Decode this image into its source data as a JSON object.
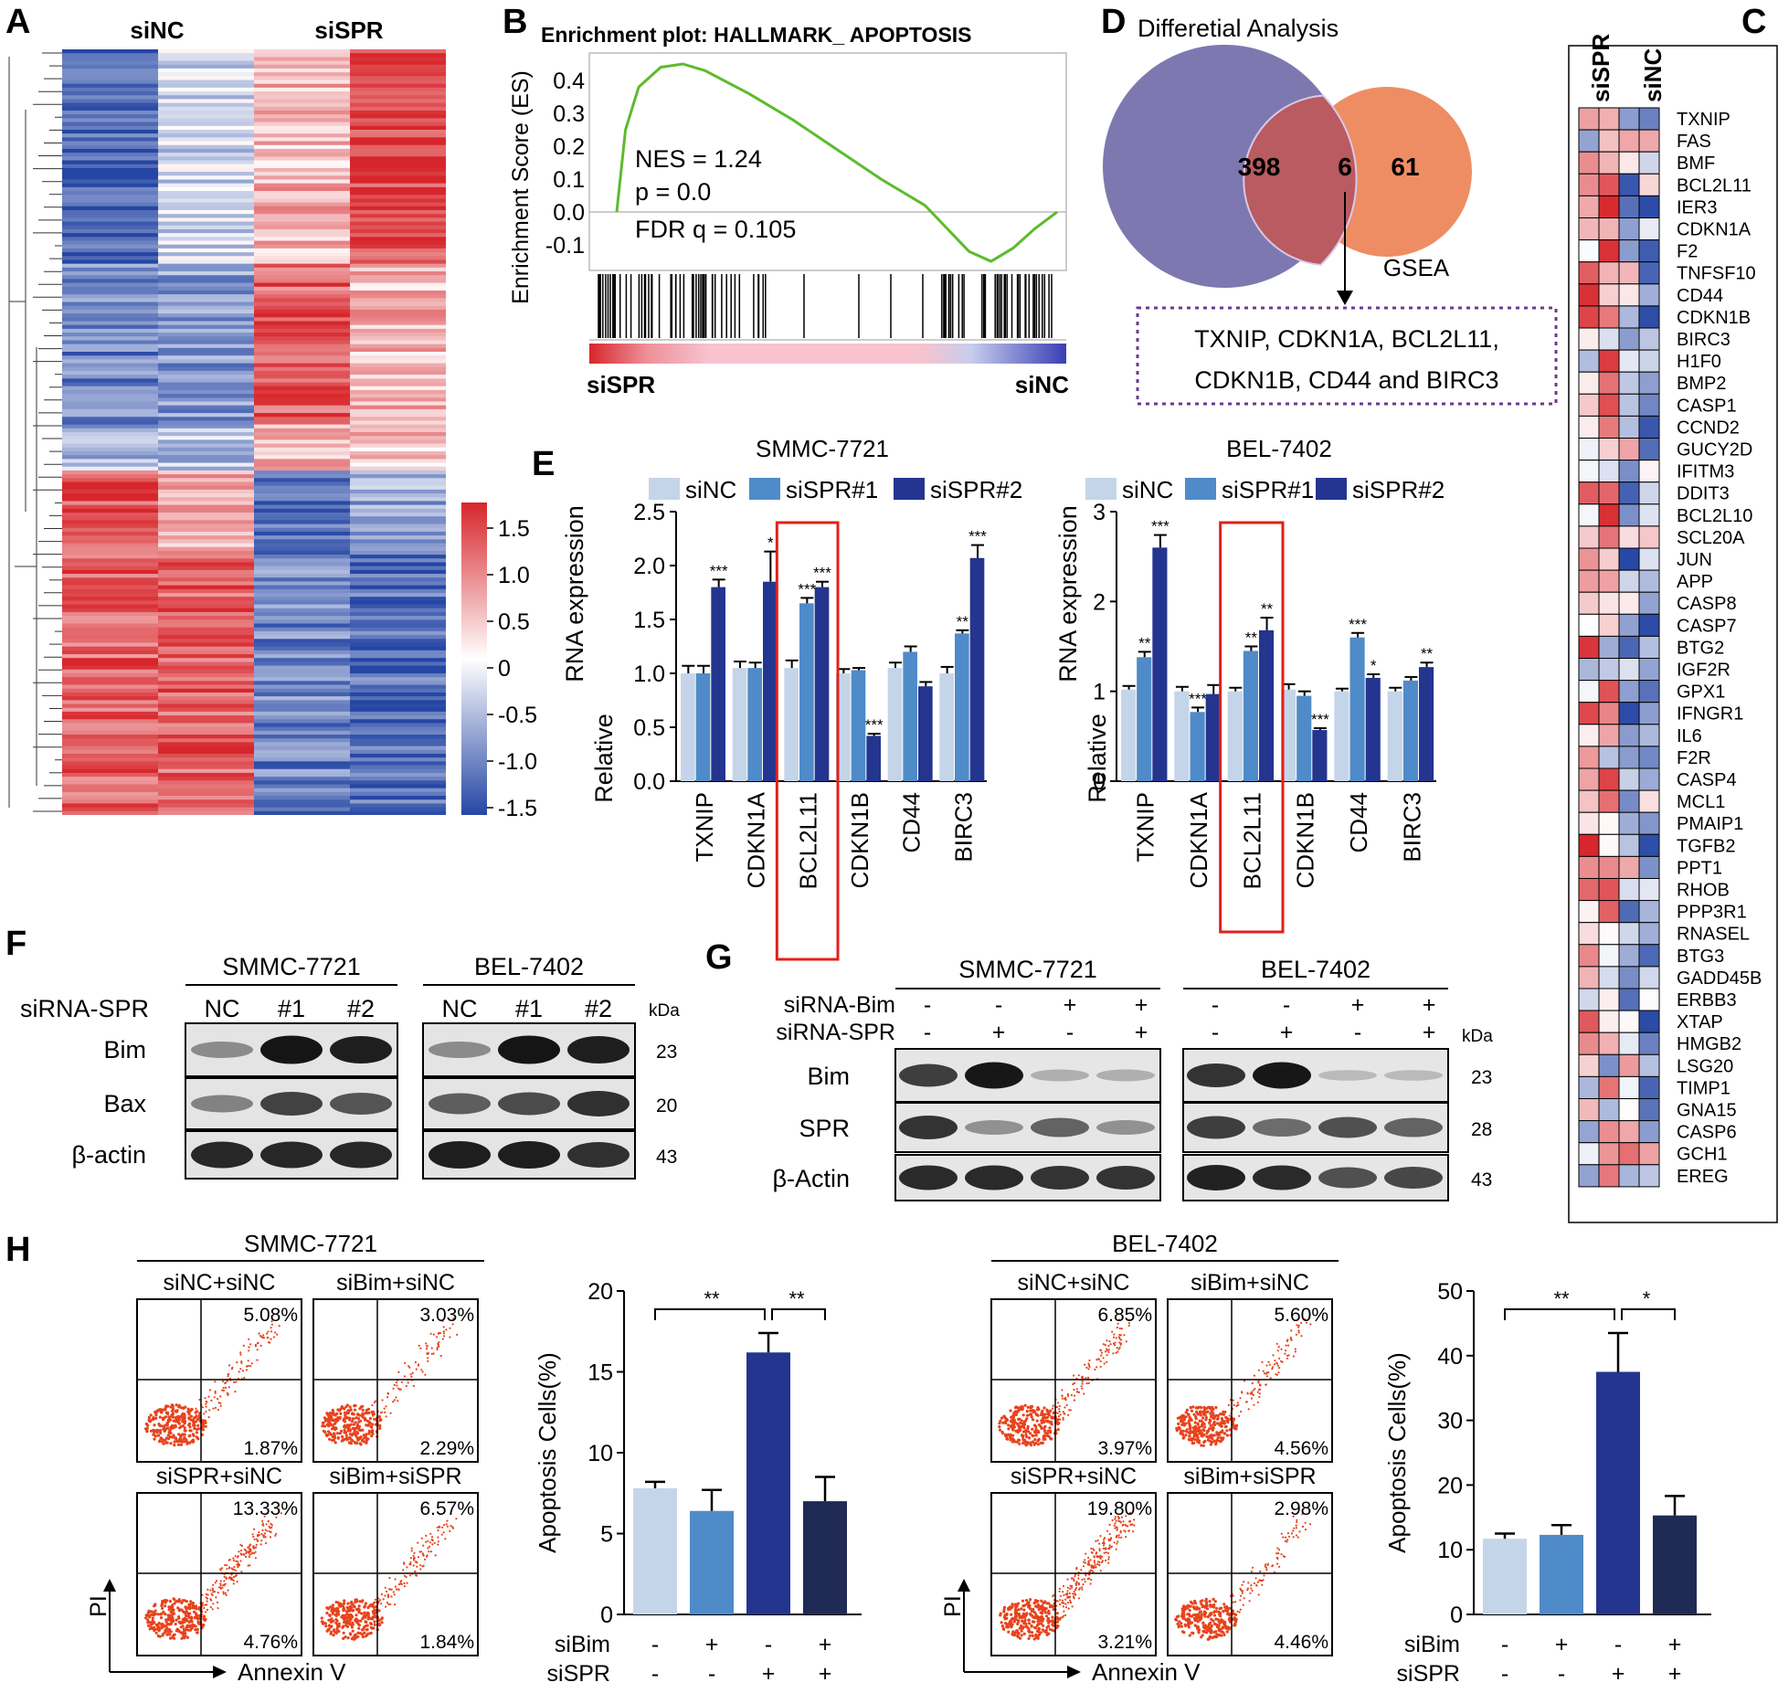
{
  "panel_letters": {
    "A": "A",
    "B": "B",
    "C": "C",
    "D": "D",
    "E": "E",
    "F": "F",
    "G": "G",
    "H": "H"
  },
  "colors": {
    "heat_red": "#d7262b",
    "heat_white": "#ffffff",
    "heat_blue": "#2546a4",
    "gsea_line": "#5dbb2d",
    "venn_big": "#7d78b0",
    "venn_small": "#ee8d64",
    "venn_overlap": "#b95b60",
    "dotted_box": "#6b3a8e",
    "highlight_box": "#e0211b",
    "bar_light": "#c5d5e9",
    "bar_mid": "#4f8bc8",
    "bar_dark": "#24358f",
    "bar_navy": "#1f2a55",
    "dots": "#e8431d"
  },
  "panel_a": {
    "col_labels": [
      "siNC",
      "siSPR"
    ],
    "colorbar_ticks": [
      "1.5",
      "1.0",
      "0.5",
      "0",
      "-0.5",
      "-1.0",
      "-1.5"
    ]
  },
  "panel_b": {
    "title": "Enrichment plot: HALLMARK_ APOPTOSIS",
    "ylabel": "Enrichment Score (ES)",
    "yticks": [
      "0.4",
      "0.3",
      "0.2",
      "0.1",
      "0.0",
      "-0.1"
    ],
    "stats": [
      "NES = 1.24",
      "p = 0.0",
      "FDR q = 0.105"
    ],
    "left_label": "siSPR",
    "right_label": "siNC"
  },
  "panel_c": {
    "col_labels": [
      "siSPR",
      "siNC"
    ],
    "genes": [
      "TXNIP",
      "FAS",
      "BMF",
      "BCL2L11",
      "IER3",
      "CDKN1A",
      "F2",
      "TNFSF10",
      "CD44",
      "CDKN1B",
      "BIRC3",
      "H1F0",
      "BMP2",
      "CASP1",
      "CCND2",
      "GUCY2D",
      "IFITM3",
      "DDIT3",
      "BCL2L10",
      "SCL20A",
      "JUN",
      "APP",
      "CASP8",
      "CASP7",
      "BTG2",
      "IGF2R",
      "GPX1",
      "IFNGR1",
      "IL6",
      "F2R",
      "CASP4",
      "MCL1",
      "PMAIP1",
      "TGFB2",
      "PPT1",
      "RHOB",
      "PPP3R1",
      "RNASEL",
      "BTG3",
      "GADD45B",
      "ERBB3",
      "XTAP",
      "HMGB2",
      "LSG20",
      "TIMP1",
      "GNA15",
      "CASP6",
      "GCH1",
      "EREG"
    ]
  },
  "panel_d": {
    "title": "Differetial Analysis",
    "left_count": "398",
    "overlap_count": "6",
    "right_count": "61",
    "gsea_label": "GSEA",
    "genes_line1": "TXNIP, CDKN1A, BCL2L11,",
    "genes_line2": "CDKN1B, CD44 and BIRC3"
  },
  "panel_e": {
    "ylabel_top": "RNA expression",
    "ylabel_bottom": "Relative",
    "legend": [
      "siNC",
      "siSPR#1",
      "siSPR#2"
    ],
    "charts": [
      {
        "title": "SMMC-7721",
        "yticks": [
          "2.5",
          "2.0",
          "1.5",
          "1.0",
          "0.5",
          "0.0"
        ],
        "genes": [
          "TXNIP",
          "CDKN1A",
          "BCL2L11",
          "CDKN1B",
          "CD44",
          "BIRC3"
        ],
        "sig": [
          [
            "",
            "",
            "***"
          ],
          [
            "",
            "",
            "*"
          ],
          [
            "",
            "***",
            "***"
          ],
          [
            "",
            "",
            "***"
          ],
          [
            "",
            "",
            ""
          ],
          [
            "",
            "**",
            "***"
          ]
        ]
      },
      {
        "title": "BEL-7402",
        "yticks": [
          "3",
          "2",
          "1",
          "0"
        ],
        "genes": [
          "TXNIP",
          "CDKN1A",
          "BCL2L11",
          "CDKN1B",
          "CD44",
          "BIRC3"
        ],
        "sig": [
          [
            "",
            "**",
            "***"
          ],
          [
            "",
            "***",
            ""
          ],
          [
            "",
            "**",
            "**"
          ],
          [
            "",
            "",
            "***"
          ],
          [
            "",
            "***",
            "*"
          ],
          [
            "",
            "",
            "**"
          ]
        ]
      }
    ]
  },
  "panel_f": {
    "cell_lines": [
      "SMMC-7721",
      "BEL-7402"
    ],
    "row_header": "siRNA-SPR",
    "lanes": [
      "NC",
      "#1",
      "#2"
    ],
    "proteins": [
      "Bim",
      "Bax",
      "β-actin"
    ],
    "kda_label": "kDa",
    "kda": [
      "23",
      "20",
      "43"
    ]
  },
  "panel_g": {
    "cell_lines": [
      "SMMC-7721",
      "BEL-7402"
    ],
    "treat_rows": [
      {
        "label": "siRNA-Bim",
        "signs": [
          "-",
          "-",
          "+",
          "+"
        ]
      },
      {
        "label": "siRNA-SPR",
        "signs": [
          "-",
          "+",
          "-",
          "+"
        ]
      }
    ],
    "proteins": [
      "Bim",
      "SPR",
      "β-Actin"
    ],
    "kda_label": "kDa",
    "kda": [
      "23",
      "28",
      "43"
    ]
  },
  "panel_h": {
    "flow": [
      {
        "title": "SMMC-7721",
        "plots": [
          {
            "label": "siNC+siNC",
            "q2": "5.08%",
            "q4": "1.87%"
          },
          {
            "label": "siBim+siNC",
            "q2": "3.03%",
            "q4": "2.29%"
          },
          {
            "label": "siSPR+siNC",
            "q2": "13.33%",
            "q4": "4.76%"
          },
          {
            "label": "siBim+siSPR",
            "q2": "6.57%",
            "q4": "1.84%"
          }
        ]
      },
      {
        "title": "BEL-7402",
        "plots": [
          {
            "label": "siNC+siNC",
            "q2": "6.85%",
            "q4": "3.97%"
          },
          {
            "label": "siBim+siNC",
            "q2": "5.60%",
            "q4": "4.56%"
          },
          {
            "label": "siSPR+siNC",
            "q2": "19.80%",
            "q4": "3.21%"
          },
          {
            "label": "siBim+siSPR",
            "q2": "2.98%",
            "q4": "4.46%"
          }
        ]
      }
    ],
    "axis_y": "PI",
    "axis_x": "Annexin V",
    "bar_ylabel": "Apoptosis Cells(%)",
    "bar_rows": [
      {
        "label": "siBim",
        "signs": [
          "-",
          "+",
          "-",
          "+"
        ]
      },
      {
        "label": "siSPR",
        "signs": [
          "-",
          "-",
          "+",
          "+"
        ]
      }
    ],
    "bar_charts": [
      {
        "yticks": [
          "20",
          "15",
          "10",
          "5",
          "0"
        ],
        "sig_left": "**",
        "sig_right": "**"
      },
      {
        "yticks": [
          "50",
          "40",
          "30",
          "20",
          "10",
          "0"
        ],
        "sig_left": "**",
        "sig_right": "*"
      }
    ]
  },
  "chart_data": [
    {
      "type": "line",
      "title": "Enrichment plot: HALLMARK_ APOPTOSIS",
      "xlabel": "",
      "ylabel": "Enrichment Score (ES)",
      "x": [
        0,
        0.02,
        0.05,
        0.1,
        0.15,
        0.2,
        0.3,
        0.4,
        0.5,
        0.6,
        0.7,
        0.75,
        0.8,
        0.85,
        0.9,
        0.95,
        1.0
      ],
      "y": [
        0,
        0.25,
        0.38,
        0.44,
        0.45,
        0.43,
        0.36,
        0.28,
        0.19,
        0.1,
        0.02,
        -0.05,
        -0.12,
        -0.15,
        -0.11,
        -0.05,
        0.0
      ],
      "ylim": [
        -0.15,
        0.47
      ]
    },
    {
      "type": "bar",
      "title": "SMMC-7721",
      "ylabel": "Relative RNA expression",
      "ylim": [
        0,
        2.5
      ],
      "categories": [
        "TXNIP",
        "CDKN1A",
        "BCL2L11",
        "CDKN1B",
        "CD44",
        "BIRC3"
      ],
      "series": [
        {
          "name": "siNC",
          "values": [
            1.0,
            1.05,
            1.05,
            1.0,
            1.05,
            1.0
          ],
          "err": [
            0.07,
            0.06,
            0.07,
            0.04,
            0.05,
            0.06
          ]
        },
        {
          "name": "siSPR#1",
          "values": [
            1.0,
            1.05,
            1.65,
            1.03,
            1.2,
            1.37
          ],
          "err": [
            0.07,
            0.05,
            0.05,
            0.02,
            0.05,
            0.03
          ]
        },
        {
          "name": "siSPR#2",
          "values": [
            1.8,
            1.85,
            1.8,
            0.42,
            0.88,
            2.07
          ],
          "err": [
            0.07,
            0.28,
            0.05,
            0.02,
            0.04,
            0.12
          ]
        }
      ]
    },
    {
      "type": "bar",
      "title": "BEL-7402",
      "ylabel": "Relative RNA expression",
      "ylim": [
        0,
        3
      ],
      "categories": [
        "TXNIP",
        "CDKN1A",
        "BCL2L11",
        "CDKN1B",
        "CD44",
        "BIRC3"
      ],
      "series": [
        {
          "name": "siNC",
          "values": [
            1.02,
            1.0,
            1.0,
            1.02,
            1.0,
            1.0
          ],
          "err": [
            0.04,
            0.05,
            0.04,
            0.06,
            0.03,
            0.04
          ]
        },
        {
          "name": "siSPR#1",
          "values": [
            1.38,
            0.77,
            1.45,
            0.95,
            1.6,
            1.12
          ],
          "err": [
            0.06,
            0.05,
            0.05,
            0.05,
            0.05,
            0.04
          ]
        },
        {
          "name": "siSPR#2",
          "values": [
            2.6,
            0.97,
            1.68,
            0.57,
            1.15,
            1.27
          ],
          "err": [
            0.14,
            0.1,
            0.14,
            0.02,
            0.04,
            0.05
          ]
        }
      ]
    },
    {
      "type": "bar",
      "title": "",
      "ylabel": "Apoptosis Cells(%)",
      "ylim": [
        0,
        20
      ],
      "categories": [
        "1",
        "2",
        "3",
        "4"
      ],
      "values": [
        7.8,
        6.4,
        16.2,
        7.0
      ],
      "err": [
        0.4,
        1.3,
        1.2,
        1.5
      ]
    },
    {
      "type": "bar",
      "title": "",
      "ylabel": "Apoptosis Cells(%)",
      "ylim": [
        0,
        50
      ],
      "categories": [
        "1",
        "2",
        "3",
        "4"
      ],
      "values": [
        11.7,
        12.3,
        37.5,
        15.3
      ],
      "err": [
        0.8,
        1.5,
        6.0,
        3.0
      ]
    }
  ]
}
